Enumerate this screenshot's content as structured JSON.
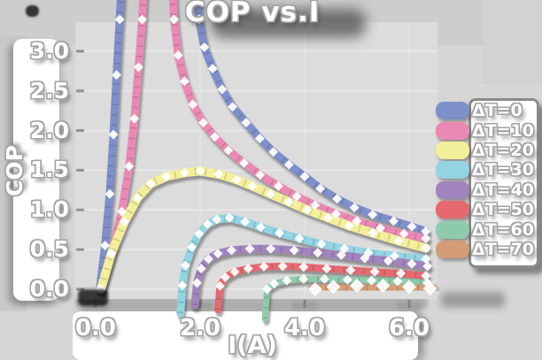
{
  "figure": {
    "background": "#d6d6d6",
    "plot_background": "#dcdcdc"
  },
  "chart_data": {
    "type": "line",
    "title": "COP vs.I",
    "xlabel": "I(A)",
    "ylabel": "COP",
    "x_ticks": [
      "0.0",
      "2.0",
      "4.0",
      "6.0"
    ],
    "x_tick_values": [
      0,
      2,
      4,
      6
    ],
    "y_ticks": [
      "3.0",
      "2.5",
      "2.0",
      "1.5",
      "1.0",
      "0.5",
      "0.0"
    ],
    "y_tick_values": [
      3.0,
      2.5,
      2.0,
      1.5,
      1.0,
      0.5,
      0.0
    ],
    "xlim": [
      -0.39,
      6.56
    ],
    "ylim": [
      -0.2,
      3.31
    ],
    "grid": true,
    "legend_position": "right",
    "marker": "open-white-diamond",
    "series": [
      {
        "name": "ΔT=0",
        "color": "#7e8fc9",
        "line_width": 9,
        "points": [
          [
            0.08,
            0.0
          ],
          [
            0.18,
            0.55
          ],
          [
            0.27,
            1.2
          ],
          [
            0.34,
            1.95
          ],
          [
            0.4,
            2.7
          ],
          [
            0.46,
            3.4
          ],
          [
            0.54,
            4.4
          ],
          [
            1.88,
            4.4
          ],
          [
            1.98,
            3.4
          ],
          [
            2.08,
            3.05
          ],
          [
            2.24,
            2.78
          ],
          [
            2.42,
            2.52
          ],
          [
            2.62,
            2.3
          ],
          [
            2.88,
            2.1
          ],
          [
            3.14,
            1.9
          ],
          [
            3.4,
            1.73
          ],
          [
            3.7,
            1.57
          ],
          [
            4.0,
            1.42
          ],
          [
            4.3,
            1.27
          ],
          [
            4.62,
            1.14
          ],
          [
            4.95,
            1.03
          ],
          [
            5.3,
            0.94
          ],
          [
            5.7,
            0.86
          ],
          [
            6.05,
            0.79
          ],
          [
            6.32,
            0.73
          ]
        ]
      },
      {
        "name": "ΔT=10",
        "color": "#ea8ab4",
        "line_width": 9,
        "points": [
          [
            0.1,
            0.0
          ],
          [
            0.3,
            0.45
          ],
          [
            0.5,
            0.98
          ],
          [
            0.64,
            1.55
          ],
          [
            0.74,
            2.15
          ],
          [
            0.82,
            2.8
          ],
          [
            0.89,
            3.4
          ],
          [
            0.96,
            4.4
          ],
          [
            1.43,
            4.4
          ],
          [
            1.5,
            3.4
          ],
          [
            1.58,
            2.95
          ],
          [
            1.7,
            2.62
          ],
          [
            1.86,
            2.33
          ],
          [
            2.06,
            2.1
          ],
          [
            2.28,
            1.92
          ],
          [
            2.54,
            1.75
          ],
          [
            2.84,
            1.59
          ],
          [
            3.15,
            1.44
          ],
          [
            3.5,
            1.3
          ],
          [
            3.85,
            1.17
          ],
          [
            4.2,
            1.06
          ],
          [
            4.6,
            0.95
          ],
          [
            5.0,
            0.86
          ],
          [
            5.45,
            0.77
          ],
          [
            5.9,
            0.7
          ],
          [
            6.32,
            0.64
          ]
        ]
      },
      {
        "name": "ΔT=20",
        "color": "#f3ef9a",
        "line_width": 10,
        "points": [
          [
            0.1,
            0.0
          ],
          [
            0.3,
            0.45
          ],
          [
            0.55,
            0.85
          ],
          [
            0.8,
            1.15
          ],
          [
            1.05,
            1.33
          ],
          [
            1.35,
            1.42
          ],
          [
            1.7,
            1.47
          ],
          [
            2.0,
            1.49
          ],
          [
            2.35,
            1.45
          ],
          [
            2.7,
            1.38
          ],
          [
            3.0,
            1.3
          ],
          [
            3.35,
            1.2
          ],
          [
            3.7,
            1.1
          ],
          [
            4.05,
            1.0
          ],
          [
            4.45,
            0.9
          ],
          [
            4.85,
            0.8
          ],
          [
            5.3,
            0.71
          ],
          [
            5.8,
            0.61
          ],
          [
            6.32,
            0.52
          ]
        ]
      },
      {
        "name": "ΔT=30",
        "color": "#93d4e2",
        "line_width": 9,
        "points": [
          [
            1.62,
            -0.3
          ],
          [
            1.66,
            0.05
          ],
          [
            1.72,
            0.3
          ],
          [
            1.84,
            0.53
          ],
          [
            1.98,
            0.7
          ],
          [
            2.14,
            0.82
          ],
          [
            2.32,
            0.88
          ],
          [
            2.56,
            0.9
          ],
          [
            2.86,
            0.85
          ],
          [
            3.16,
            0.78
          ],
          [
            3.52,
            0.71
          ],
          [
            3.9,
            0.64
          ],
          [
            4.32,
            0.57
          ],
          [
            4.76,
            0.51
          ],
          [
            5.22,
            0.46
          ],
          [
            5.72,
            0.42
          ],
          [
            6.32,
            0.38
          ]
        ]
      },
      {
        "name": "ΔT=40",
        "color": "#a184bd",
        "line_width": 9,
        "points": [
          [
            1.9,
            -0.2
          ],
          [
            1.94,
            0.08
          ],
          [
            2.02,
            0.26
          ],
          [
            2.16,
            0.38
          ],
          [
            2.34,
            0.45
          ],
          [
            2.6,
            0.49
          ],
          [
            2.95,
            0.51
          ],
          [
            3.35,
            0.51
          ],
          [
            3.8,
            0.49
          ],
          [
            4.25,
            0.46
          ],
          [
            4.7,
            0.43
          ],
          [
            5.15,
            0.39
          ],
          [
            5.6,
            0.36
          ],
          [
            6.05,
            0.32
          ],
          [
            6.35,
            0.29
          ]
        ]
      },
      {
        "name": "ΔT=50",
        "color": "#e5696f",
        "line_width": 8,
        "points": [
          [
            2.34,
            -0.26
          ],
          [
            2.38,
            0.04
          ],
          [
            2.48,
            0.15
          ],
          [
            2.66,
            0.22
          ],
          [
            2.92,
            0.26
          ],
          [
            3.22,
            0.285
          ],
          [
            3.58,
            0.29
          ],
          [
            3.98,
            0.28
          ],
          [
            4.42,
            0.26
          ],
          [
            4.88,
            0.24
          ],
          [
            5.34,
            0.22
          ],
          [
            5.84,
            0.2
          ],
          [
            6.32,
            0.17
          ]
        ]
      },
      {
        "name": "ΔT=60",
        "color": "#8ecbaa",
        "line_width": 7,
        "points": [
          [
            3.24,
            -0.37
          ],
          [
            3.28,
            0.0
          ],
          [
            3.42,
            0.07
          ],
          [
            3.66,
            0.11
          ],
          [
            3.98,
            0.13
          ],
          [
            4.38,
            0.13
          ],
          [
            4.82,
            0.12
          ],
          [
            5.28,
            0.11
          ],
          [
            5.78,
            0.1
          ],
          [
            6.35,
            0.08
          ]
        ]
      },
      {
        "name": "ΔT=70",
        "color": "#d49d77",
        "line_width": 16,
        "points": [
          [
            4.2,
            0.0
          ],
          [
            4.55,
            0.03
          ],
          [
            5.0,
            0.045
          ],
          [
            5.5,
            0.045
          ],
          [
            6.0,
            0.03
          ],
          [
            6.4,
            0.01
          ]
        ]
      }
    ]
  }
}
